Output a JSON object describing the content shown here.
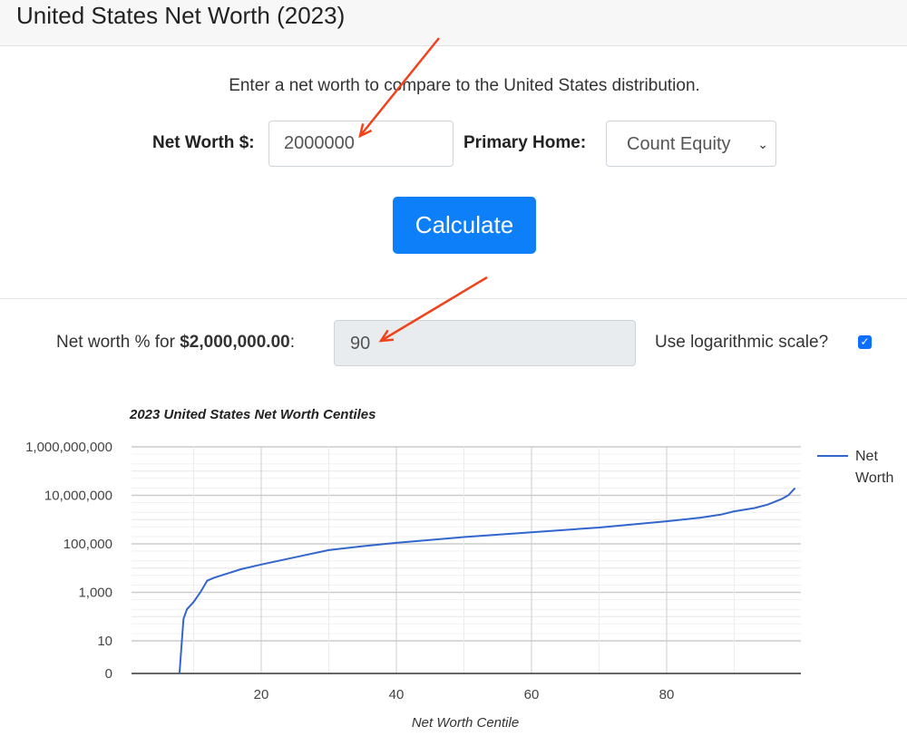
{
  "header": {
    "title": "United States Net Worth (2023)"
  },
  "form": {
    "intro": "Enter a net worth to compare to the United States distribution.",
    "net_worth_label": "Net Worth $:",
    "net_worth_value": "2000000",
    "primary_home_label": "Primary Home:",
    "primary_home_value": "Count Equity",
    "calculate_label": "Calculate"
  },
  "result": {
    "label_prefix": "Net worth % for ",
    "label_amount": "$2,000,000.00",
    "label_suffix": ":",
    "value": "90",
    "log_scale_label": "Use logarithmic scale?",
    "log_scale_checked": true
  },
  "annotations": {
    "arrow_color": "#f0431c"
  },
  "chart_data": {
    "type": "line",
    "title": "2023 United States Net Worth Centiles",
    "xlabel": "Net Worth Centile",
    "ylabel": "",
    "y_scale": "log",
    "xlim": [
      1,
      99
    ],
    "ylim": [
      0,
      1000000000
    ],
    "x_ticks": [
      "20",
      "40",
      "60",
      "80"
    ],
    "y_ticks": [
      "1,000,000,000",
      "10,000,000",
      "100,000",
      "1,000",
      "10",
      "0"
    ],
    "grid": true,
    "legend": "right",
    "series": [
      {
        "name": "Net Worth",
        "color": "#3366cc",
        "x": [
          7.9,
          8.5,
          9,
          10,
          11,
          12,
          13,
          15,
          17,
          20,
          25,
          30,
          35,
          40,
          50,
          60,
          70,
          80,
          85,
          88,
          90,
          93,
          95,
          97,
          98,
          99
        ],
        "values": [
          0,
          80,
          200,
          400,
          1000,
          3000,
          4000,
          6000,
          9000,
          14000,
          28000,
          55000,
          80000,
          110000,
          190000,
          300000,
          470000,
          850000,
          1200000,
          1600000,
          2200000,
          3000000,
          4200000,
          7000000,
          10000000,
          20000000
        ]
      }
    ]
  }
}
